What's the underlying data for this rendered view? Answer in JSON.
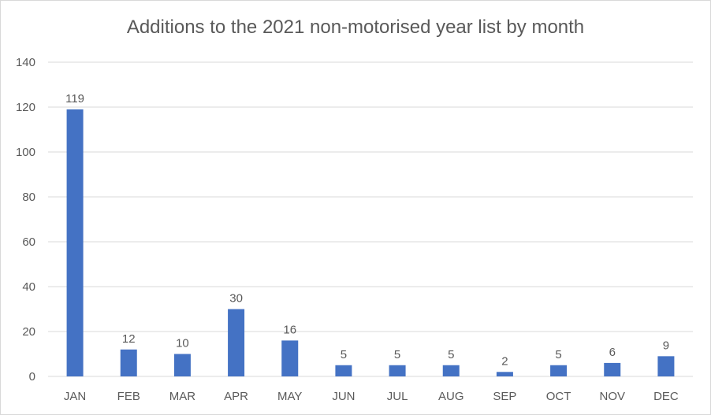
{
  "chart_data": {
    "type": "bar",
    "title": "Additions to the 2021 non-motorised year list by month",
    "xlabel": "",
    "ylabel": "",
    "categories": [
      "JAN",
      "FEB",
      "MAR",
      "APR",
      "MAY",
      "JUN",
      "JUL",
      "AUG",
      "SEP",
      "OCT",
      "NOV",
      "DEC"
    ],
    "values": [
      119,
      12,
      10,
      30,
      16,
      5,
      5,
      5,
      2,
      5,
      6,
      9
    ],
    "ylim": [
      0,
      140
    ],
    "yticks": [
      0,
      20,
      40,
      60,
      80,
      100,
      120,
      140
    ],
    "grid": true,
    "legend": "none",
    "data_labels": true,
    "colors": {
      "bar": "#4472c4",
      "grid": "#d9d9d9",
      "text": "#595959"
    }
  }
}
